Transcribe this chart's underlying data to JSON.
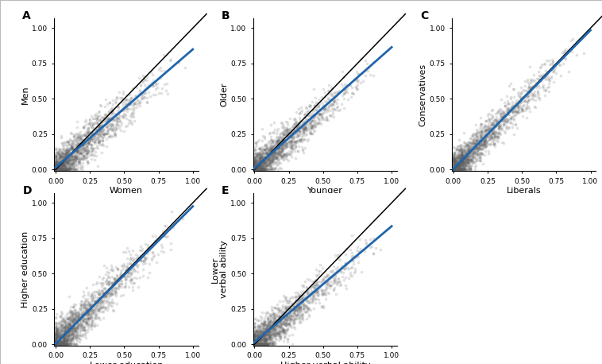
{
  "panels": [
    {
      "label": "A",
      "xlabel": "Women",
      "ylabel": "Men",
      "blue_slope": 0.835,
      "blue_intercept": 0.015,
      "scatter_slope": 0.84,
      "scatter_noise": 0.065,
      "beta_a": 0.7,
      "beta_b": 2.8
    },
    {
      "label": "B",
      "xlabel": "Younger",
      "ylabel": "Older",
      "blue_slope": 0.855,
      "blue_intercept": 0.01,
      "scatter_slope": 0.855,
      "scatter_noise": 0.06,
      "beta_a": 0.7,
      "beta_b": 2.8
    },
    {
      "label": "C",
      "xlabel": "Liberals",
      "ylabel": "Conservatives",
      "blue_slope": 0.98,
      "blue_intercept": 0.005,
      "scatter_slope": 0.98,
      "scatter_noise": 0.055,
      "beta_a": 0.7,
      "beta_b": 2.8
    },
    {
      "label": "D",
      "xlabel": "Lower education",
      "ylabel": "Higher education",
      "blue_slope": 0.97,
      "blue_intercept": 0.005,
      "scatter_slope": 0.97,
      "scatter_noise": 0.065,
      "beta_a": 0.7,
      "beta_b": 2.8
    },
    {
      "label": "E",
      "xlabel": "Higher verbal ability",
      "ylabel": "Lower\nverbal ability",
      "blue_slope": 0.82,
      "blue_intercept": 0.015,
      "scatter_slope": 0.82,
      "scatter_noise": 0.06,
      "beta_a": 0.7,
      "beta_b": 2.8
    }
  ],
  "n_points": 1568,
  "dot_color": "#606060",
  "dot_alpha": 0.18,
  "dot_size": 7,
  "blue_color": "#2166ac",
  "black_color": "#000000",
  "blue_lw": 2.0,
  "black_lw": 1.1,
  "tick_labels": [
    "0.00",
    "0.25",
    "0.50",
    "0.75",
    "1.00"
  ],
  "tick_vals": [
    0.0,
    0.25,
    0.5,
    0.75,
    1.0
  ],
  "fig_width": 7.58,
  "fig_height": 4.58
}
